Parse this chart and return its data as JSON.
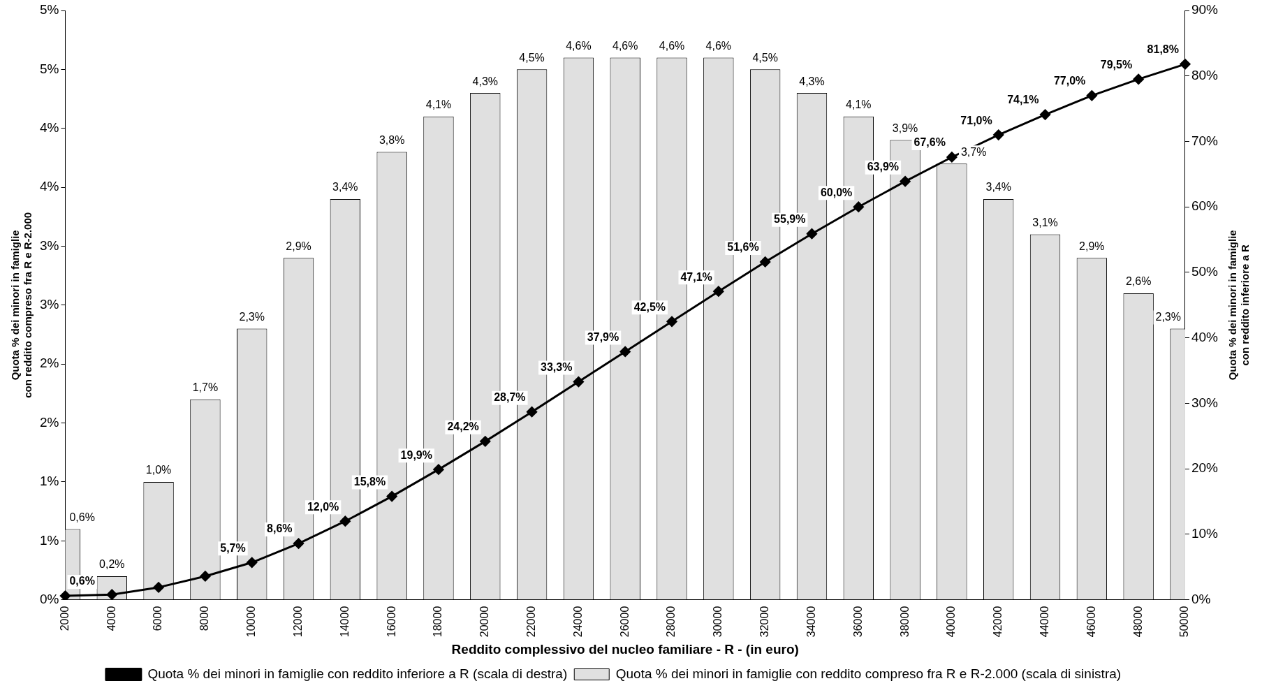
{
  "chart_data": {
    "type": "bar",
    "xlabel": "Reddito complessivo del nucleo familiare - R - (in euro)",
    "ylabel": "Quota % dei minori in famiglie\ncon reddito compreso fra R e R-2.000",
    "y2label": "Quota % dei minori in famiglie\ncon reddito inferiore a R",
    "categories": [
      "2000",
      "4000",
      "6000",
      "8000",
      "10000",
      "12000",
      "14000",
      "16000",
      "18000",
      "20000",
      "22000",
      "24000",
      "26000",
      "28000",
      "30000",
      "32000",
      "34000",
      "36000",
      "38000",
      "40000",
      "42000",
      "44000",
      "46000",
      "48000",
      "50000"
    ],
    "series": [
      {
        "name": "Quota % dei minori in famiglie con reddito compreso fra R e R-2.000 (scala di sinistra)",
        "color": "#e0e0e0",
        "values": [
          0.6,
          0.2,
          1.0,
          1.7,
          2.3,
          2.9,
          3.4,
          3.8,
          4.1,
          4.3,
          4.5,
          4.6,
          4.6,
          4.6,
          4.6,
          4.5,
          4.3,
          4.1,
          3.9,
          3.7,
          3.4,
          3.1,
          2.9,
          2.6,
          2.3
        ],
        "value_labels": [
          "0,6%",
          "0,2%",
          "1,0%",
          "1,7%",
          "2,3%",
          "2,9%",
          "3,4%",
          "3,8%",
          "4,1%",
          "4,3%",
          "4,5%",
          "4,6%",
          "4,6%",
          "4,6%",
          "4,6%",
          "4,5%",
          "4,3%",
          "4,1%",
          "3,9%",
          "3,7%",
          "3,4%",
          "3,1%",
          "2,9%",
          "2,6%",
          "2,3%"
        ]
      },
      {
        "name": "Quota % dei minori in famiglie con reddito inferiore a R (scala di destra)",
        "type": "line",
        "axis": "y2",
        "color": "#000000",
        "values": [
          0.6,
          0.8,
          1.9,
          3.6,
          5.7,
          8.6,
          12.0,
          15.8,
          19.9,
          24.2,
          28.7,
          33.3,
          37.9,
          42.5,
          47.1,
          51.6,
          55.9,
          60.0,
          63.9,
          67.6,
          71.0,
          74.1,
          77.0,
          79.5,
          81.8
        ],
        "value_labels": [
          "0,6%",
          null,
          null,
          null,
          "5,7%",
          "8,6%",
          "12,0%",
          "15,8%",
          "19,9%",
          "24,2%",
          "28,7%",
          "33,3%",
          "37,9%",
          "42,5%",
          "47,1%",
          "51,6%",
          "55,9%",
          "60,0%",
          "63,9%",
          "67,6%",
          "71,0%",
          "74,1%",
          "77,0%",
          "79,5%",
          "81,8%"
        ]
      }
    ],
    "ylim": [
      0,
      5
    ],
    "yticks": [
      {
        "value": 0,
        "label": "0%"
      },
      {
        "value": 0.5,
        "label": "1%"
      },
      {
        "value": 1,
        "label": "1%"
      },
      {
        "value": 1.5,
        "label": "2%"
      },
      {
        "value": 2,
        "label": "2%"
      },
      {
        "value": 2.5,
        "label": "3%"
      },
      {
        "value": 3,
        "label": "3%"
      },
      {
        "value": 3.5,
        "label": "4%"
      },
      {
        "value": 4,
        "label": "4%"
      },
      {
        "value": 4.5,
        "label": "5%"
      },
      {
        "value": 5,
        "label": "5%"
      }
    ],
    "y2lim": [
      0,
      90
    ],
    "y2ticks": [
      {
        "value": 0,
        "label": "0%"
      },
      {
        "value": 10,
        "label": "10%"
      },
      {
        "value": 20,
        "label": "20%"
      },
      {
        "value": 30,
        "label": "30%"
      },
      {
        "value": 40,
        "label": "40%"
      },
      {
        "value": 50,
        "label": "50%"
      },
      {
        "value": 60,
        "label": "60%"
      },
      {
        "value": 70,
        "label": "70%"
      },
      {
        "value": 80,
        "label": "80%"
      },
      {
        "value": 90,
        "label": "90%"
      }
    ],
    "marker": "diamond",
    "grid": false,
    "legend": "bottom"
  }
}
